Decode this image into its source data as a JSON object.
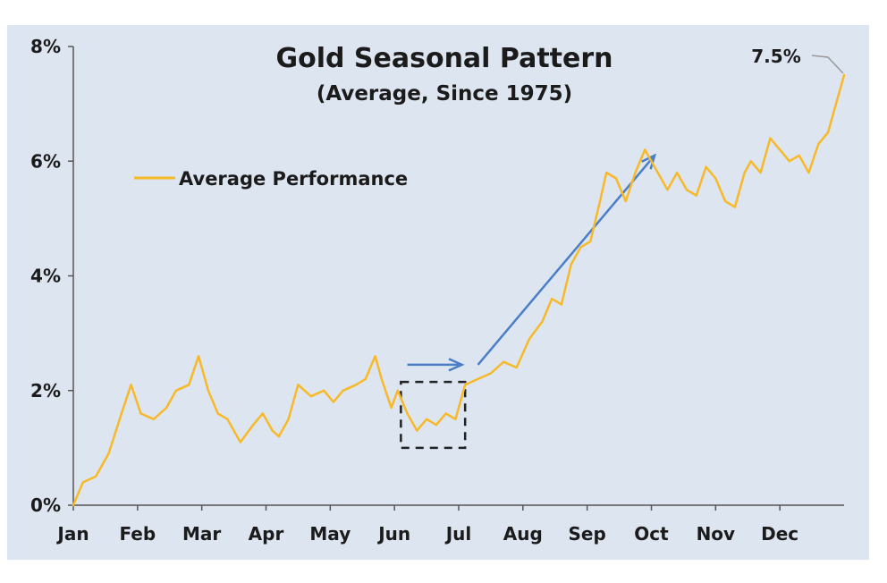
{
  "colors": {
    "background": "#dde5f1",
    "line": "#f7b928",
    "arrow": "#4a7fc6",
    "axis": "#555555"
  },
  "chart_data": {
    "type": "line",
    "title": "Gold Seasonal Pattern",
    "subtitle": "(Average, Since 1975)",
    "categories": [
      "Jan",
      "Feb",
      "Mar",
      "Apr",
      "May",
      "Jun",
      "Jul",
      "Aug",
      "Sep",
      "Oct",
      "Nov",
      "Dec"
    ],
    "y_tick_labels": [
      "0%",
      "2%",
      "4%",
      "6%",
      "8%"
    ],
    "ylim": [
      0,
      8
    ],
    "xlim": [
      0,
      12
    ],
    "grid": false,
    "legend_position": "upper-left",
    "end_label": "7.5%",
    "series": [
      {
        "name": "Average Performance",
        "x": [
          0,
          0.15,
          0.35,
          0.55,
          0.75,
          0.9,
          1.05,
          1.25,
          1.45,
          1.6,
          1.8,
          1.95,
          2.1,
          2.25,
          2.4,
          2.6,
          2.8,
          2.95,
          3.1,
          3.2,
          3.35,
          3.5,
          3.7,
          3.9,
          4.05,
          4.2,
          4.4,
          4.55,
          4.7,
          4.8,
          4.95,
          5.05,
          5.2,
          5.35,
          5.5,
          5.65,
          5.8,
          5.95,
          6.1,
          6.3,
          6.5,
          6.7,
          6.9,
          7.1,
          7.3,
          7.45,
          7.6,
          7.75,
          7.9,
          8.05,
          8.2,
          8.3,
          8.45,
          8.6,
          8.75,
          8.9,
          9.0,
          9.15,
          9.25,
          9.4,
          9.55,
          9.7,
          9.85,
          10.0,
          10.15,
          10.3,
          10.45,
          10.55,
          10.7,
          10.85,
          11.0,
          11.15,
          11.3,
          11.45,
          11.6,
          11.75,
          11.85,
          11.95,
          12.0
        ],
        "values": [
          0,
          0.4,
          0.5,
          0.9,
          1.6,
          2.1,
          1.6,
          1.5,
          1.7,
          2.0,
          2.1,
          2.6,
          2.0,
          1.6,
          1.5,
          1.1,
          1.4,
          1.6,
          1.3,
          1.2,
          1.5,
          2.1,
          1.9,
          2.0,
          1.8,
          2.0,
          2.1,
          2.2,
          2.6,
          2.2,
          1.7,
          2.0,
          1.6,
          1.3,
          1.5,
          1.4,
          1.6,
          1.5,
          2.1,
          2.2,
          2.3,
          2.5,
          2.4,
          2.9,
          3.2,
          3.6,
          3.5,
          4.2,
          4.5,
          4.6,
          5.3,
          5.8,
          5.7,
          5.3,
          5.8,
          6.2,
          6.0,
          5.7,
          5.5,
          5.8,
          5.5,
          5.4,
          5.9,
          5.7,
          5.3,
          5.2,
          5.8,
          6.0,
          5.8,
          6.4,
          6.2,
          6.0,
          6.1,
          5.8,
          6.3,
          6.5,
          6.9,
          7.3,
          7.5
        ]
      }
    ],
    "annotations": {
      "dashed_box": {
        "x": [
          5.1,
          6.1
        ],
        "y": [
          1.0,
          2.15
        ]
      },
      "short_arrow": {
        "from": [
          5.2,
          2.45
        ],
        "to": [
          6.05,
          2.45
        ]
      },
      "long_arrow": {
        "from": [
          6.3,
          2.45
        ],
        "to": [
          9.05,
          6.1
        ]
      }
    }
  }
}
